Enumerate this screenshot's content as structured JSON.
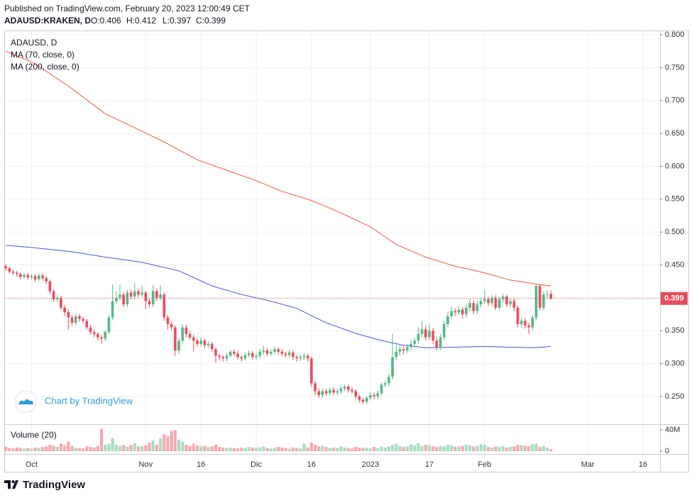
{
  "header": {
    "published": "Published on TradingView.com, February 20, 2023 12:00:49 CET",
    "symbol": "ADAUSD:KRAKEN, D",
    "ohlc": [
      "O:0.406",
      "H:0.412",
      "L:0.397",
      "C:0.399"
    ]
  },
  "chart_data": {
    "type": "candlestick",
    "symbol_label": "ADAUSD, D",
    "up_color": "#53b987",
    "down_color": "#eb4d5c",
    "open": [
      0.448,
      0.445,
      0.44,
      0.438,
      0.436,
      0.432,
      0.435,
      0.431,
      0.433,
      0.428,
      0.434,
      0.43,
      0.425,
      0.41,
      0.398,
      0.4,
      0.385,
      0.378,
      0.37,
      0.362,
      0.372,
      0.368,
      0.365,
      0.355,
      0.348,
      0.345,
      0.34,
      0.338,
      0.348,
      0.37,
      0.395,
      0.4,
      0.405,
      0.39,
      0.408,
      0.402,
      0.41,
      0.405,
      0.408,
      0.395,
      0.39,
      0.41,
      0.4,
      0.405,
      0.37,
      0.36,
      0.355,
      0.32,
      0.335,
      0.355,
      0.345,
      0.34,
      0.335,
      0.33,
      0.335,
      0.328,
      0.33,
      0.322,
      0.312,
      0.31,
      0.308,
      0.312,
      0.318,
      0.315,
      0.31,
      0.308,
      0.313,
      0.316,
      0.31,
      0.312,
      0.318,
      0.32,
      0.315,
      0.318,
      0.322,
      0.318,
      0.315,
      0.313,
      0.317,
      0.31,
      0.308,
      0.31,
      0.312,
      0.308,
      0.27,
      0.258,
      0.252,
      0.258,
      0.255,
      0.26,
      0.256,
      0.258,
      0.262,
      0.265,
      0.26,
      0.258,
      0.25,
      0.245,
      0.242,
      0.248,
      0.252,
      0.25,
      0.255,
      0.268,
      0.27,
      0.28,
      0.31,
      0.318,
      0.322,
      0.32,
      0.325,
      0.33,
      0.335,
      0.345,
      0.352,
      0.34,
      0.35,
      0.335,
      0.325,
      0.34,
      0.36,
      0.372,
      0.38,
      0.378,
      0.382,
      0.375,
      0.385,
      0.392,
      0.38,
      0.39,
      0.395,
      0.398,
      0.392,
      0.4,
      0.385,
      0.398,
      0.402,
      0.39,
      0.395,
      0.385,
      0.36,
      0.365,
      0.358,
      0.355,
      0.37,
      0.418,
      0.385,
      0.405,
      0.406
    ],
    "high": [
      0.452,
      0.448,
      0.443,
      0.441,
      0.439,
      0.438,
      0.438,
      0.436,
      0.436,
      0.437,
      0.437,
      0.433,
      0.428,
      0.413,
      0.404,
      0.403,
      0.389,
      0.382,
      0.374,
      0.376,
      0.376,
      0.371,
      0.368,
      0.359,
      0.352,
      0.348,
      0.344,
      0.351,
      0.374,
      0.42,
      0.41,
      0.42,
      0.409,
      0.412,
      0.413,
      0.422,
      0.414,
      0.418,
      0.411,
      0.399,
      0.42,
      0.414,
      0.419,
      0.408,
      0.374,
      0.364,
      0.358,
      0.34,
      0.36,
      0.359,
      0.349,
      0.344,
      0.339,
      0.34,
      0.338,
      0.334,
      0.333,
      0.325,
      0.315,
      0.313,
      0.316,
      0.321,
      0.322,
      0.319,
      0.313,
      0.317,
      0.32,
      0.319,
      0.316,
      0.322,
      0.327,
      0.324,
      0.322,
      0.326,
      0.325,
      0.322,
      0.318,
      0.321,
      0.32,
      0.313,
      0.314,
      0.316,
      0.315,
      0.311,
      0.274,
      0.262,
      0.262,
      0.262,
      0.264,
      0.264,
      0.262,
      0.266,
      0.268,
      0.268,
      0.264,
      0.261,
      0.253,
      0.248,
      0.251,
      0.256,
      0.256,
      0.259,
      0.271,
      0.274,
      0.284,
      0.345,
      0.33,
      0.328,
      0.327,
      0.33,
      0.336,
      0.34,
      0.356,
      0.365,
      0.358,
      0.36,
      0.354,
      0.34,
      0.345,
      0.365,
      0.378,
      0.386,
      0.384,
      0.388,
      0.386,
      0.39,
      0.398,
      0.396,
      0.395,
      0.4,
      0.412,
      0.402,
      0.404,
      0.404,
      0.402,
      0.406,
      0.405,
      0.399,
      0.399,
      0.388,
      0.369,
      0.369,
      0.362,
      0.374,
      0.42,
      0.421,
      0.41,
      0.411,
      0.412
    ],
    "low": [
      0.441,
      0.437,
      0.434,
      0.432,
      0.428,
      0.429,
      0.427,
      0.428,
      0.424,
      0.425,
      0.426,
      0.421,
      0.406,
      0.394,
      0.394,
      0.381,
      0.372,
      0.352,
      0.357,
      0.358,
      0.364,
      0.361,
      0.351,
      0.344,
      0.34,
      0.335,
      0.33,
      0.334,
      0.345,
      0.366,
      0.39,
      0.396,
      0.386,
      0.386,
      0.398,
      0.398,
      0.4,
      0.401,
      0.383,
      0.385,
      0.386,
      0.395,
      0.396,
      0.365,
      0.352,
      0.35,
      0.312,
      0.314,
      0.33,
      0.34,
      0.336,
      0.318,
      0.325,
      0.326,
      0.323,
      0.324,
      0.318,
      0.301,
      0.305,
      0.303,
      0.304,
      0.309,
      0.311,
      0.306,
      0.303,
      0.305,
      0.309,
      0.306,
      0.306,
      0.308,
      0.314,
      0.311,
      0.311,
      0.314,
      0.314,
      0.311,
      0.309,
      0.309,
      0.306,
      0.303,
      0.304,
      0.306,
      0.303,
      0.265,
      0.252,
      0.248,
      0.248,
      0.251,
      0.251,
      0.252,
      0.252,
      0.254,
      0.258,
      0.256,
      0.254,
      0.246,
      0.241,
      0.238,
      0.238,
      0.244,
      0.246,
      0.246,
      0.251,
      0.264,
      0.266,
      0.276,
      0.305,
      0.312,
      0.314,
      0.316,
      0.32,
      0.325,
      0.33,
      0.34,
      0.335,
      0.335,
      0.33,
      0.32,
      0.32,
      0.336,
      0.355,
      0.368,
      0.372,
      0.374,
      0.368,
      0.37,
      0.38,
      0.375,
      0.376,
      0.385,
      0.39,
      0.387,
      0.388,
      0.381,
      0.381,
      0.393,
      0.386,
      0.386,
      0.38,
      0.355,
      0.355,
      0.353,
      0.345,
      0.35,
      0.366,
      0.381,
      0.381,
      0.399,
      0.397
    ],
    "close": [
      0.445,
      0.44,
      0.438,
      0.436,
      0.432,
      0.435,
      0.431,
      0.433,
      0.428,
      0.434,
      0.43,
      0.425,
      0.41,
      0.398,
      0.4,
      0.385,
      0.378,
      0.37,
      0.362,
      0.372,
      0.368,
      0.365,
      0.355,
      0.348,
      0.345,
      0.34,
      0.338,
      0.348,
      0.37,
      0.395,
      0.4,
      0.405,
      0.39,
      0.408,
      0.402,
      0.41,
      0.405,
      0.408,
      0.395,
      0.39,
      0.41,
      0.4,
      0.405,
      0.37,
      0.36,
      0.355,
      0.32,
      0.335,
      0.355,
      0.345,
      0.34,
      0.335,
      0.33,
      0.335,
      0.328,
      0.33,
      0.322,
      0.312,
      0.31,
      0.308,
      0.312,
      0.318,
      0.315,
      0.31,
      0.308,
      0.313,
      0.316,
      0.31,
      0.312,
      0.318,
      0.32,
      0.315,
      0.318,
      0.322,
      0.318,
      0.315,
      0.313,
      0.317,
      0.31,
      0.308,
      0.31,
      0.312,
      0.308,
      0.27,
      0.258,
      0.252,
      0.258,
      0.255,
      0.26,
      0.256,
      0.258,
      0.262,
      0.265,
      0.26,
      0.258,
      0.25,
      0.245,
      0.242,
      0.248,
      0.252,
      0.25,
      0.255,
      0.268,
      0.27,
      0.28,
      0.31,
      0.318,
      0.322,
      0.32,
      0.325,
      0.33,
      0.335,
      0.345,
      0.352,
      0.34,
      0.35,
      0.335,
      0.325,
      0.34,
      0.36,
      0.372,
      0.38,
      0.378,
      0.382,
      0.375,
      0.385,
      0.392,
      0.38,
      0.39,
      0.395,
      0.398,
      0.392,
      0.4,
      0.385,
      0.398,
      0.402,
      0.39,
      0.395,
      0.385,
      0.36,
      0.365,
      0.358,
      0.355,
      0.37,
      0.418,
      0.385,
      0.405,
      0.406,
      0.399
    ],
    "series": [
      {
        "name": "MA (70, close, 0)",
        "color": "#4a55d6",
        "x": [
          0,
          8,
          18,
          27,
          37,
          47,
          56,
          64,
          72,
          79,
          87,
          95,
          102,
          108,
          114,
          122,
          130,
          137,
          143,
          148
        ],
        "values": [
          0.48,
          0.476,
          0.47,
          0.462,
          0.454,
          0.441,
          0.418,
          0.405,
          0.395,
          0.384,
          0.362,
          0.346,
          0.335,
          0.328,
          0.324,
          0.325,
          0.326,
          0.325,
          0.324,
          0.326
        ]
      },
      {
        "name": "MA (200, close, 0)",
        "color": "#f0554a",
        "x": [
          0,
          8,
          18,
          27,
          33,
          43,
          52,
          60,
          68,
          75,
          83,
          91,
          99,
          106,
          114,
          122,
          130,
          137,
          145,
          148
        ],
        "values": [
          0.775,
          0.756,
          0.718,
          0.68,
          0.664,
          0.637,
          0.61,
          0.594,
          0.578,
          0.562,
          0.548,
          0.529,
          0.508,
          0.481,
          0.462,
          0.448,
          0.438,
          0.427,
          0.42,
          0.418
        ]
      }
    ],
    "last_price": 0.399,
    "last_price_color": "#e64c5a",
    "xlim": [
      -0.4,
      177.6
    ],
    "xticks": [
      {
        "value": 7,
        "label": "Oct"
      },
      {
        "value": 38,
        "label": "Nov"
      },
      {
        "value": 53,
        "label": "16"
      },
      {
        "value": 68,
        "label": "Dic"
      },
      {
        "value": 83,
        "label": "16"
      },
      {
        "value": 99,
        "label": "2023"
      },
      {
        "value": 115,
        "label": "17"
      },
      {
        "value": 130,
        "label": "Feb"
      },
      {
        "value": 158,
        "label": "Mar"
      },
      {
        "value": 173,
        "label": "16"
      }
    ],
    "ylim": [
      0.2078,
      0.8065
    ],
    "yticks": [
      {
        "value": 0.25,
        "label": "0.250"
      },
      {
        "value": 0.3,
        "label": "0.300"
      },
      {
        "value": 0.35,
        "label": "0.350"
      },
      {
        "value": 0.4,
        "label": "0.400"
      },
      {
        "value": 0.45,
        "label": "0.450"
      },
      {
        "value": 0.5,
        "label": "0.500"
      },
      {
        "value": 0.55,
        "label": "0.550"
      },
      {
        "value": 0.6,
        "label": "0.600"
      },
      {
        "value": 0.65,
        "label": "0.650"
      },
      {
        "value": 0.7,
        "label": "0.700"
      },
      {
        "value": 0.75,
        "label": "0.750"
      },
      {
        "value": 0.8,
        "label": "0.800"
      }
    ],
    "grid": true,
    "volume": {
      "title": "Volume (20)",
      "up_color": "#a9dcc3",
      "down_color": "#f5a9b0",
      "ylim": [
        -5.3,
        50.7
      ],
      "yticks": [
        {
          "value": 40,
          "label": "40M"
        },
        0
      ],
      "values": [
        8,
        6,
        5,
        7,
        6,
        5,
        6,
        5,
        7,
        6,
        8,
        9,
        12,
        10,
        8,
        14,
        11,
        18,
        10,
        7,
        6,
        5,
        9,
        8,
        7,
        10,
        42,
        12,
        14,
        25,
        12,
        10,
        11,
        8,
        12,
        15,
        9,
        10,
        11,
        16,
        20,
        12,
        24,
        32,
        28,
        38,
        40,
        22,
        18,
        12,
        10,
        14,
        11,
        9,
        10,
        8,
        9,
        12,
        8,
        7,
        6,
        7,
        6,
        5,
        7,
        6,
        8,
        7,
        6,
        7,
        9,
        6,
        5,
        6,
        8,
        7,
        6,
        5,
        7,
        6,
        5,
        14,
        7,
        16,
        12,
        9,
        10,
        8,
        6,
        7,
        6,
        9,
        7,
        6,
        5,
        8,
        7,
        6,
        7,
        5,
        8,
        6,
        9,
        7,
        9,
        12,
        14,
        10,
        8,
        9,
        13,
        11,
        15,
        10,
        12,
        11,
        9,
        8,
        10,
        9,
        12,
        11,
        8,
        9,
        10,
        12,
        11,
        9,
        10,
        13,
        12,
        8,
        7,
        9,
        8,
        10,
        7,
        8,
        9,
        12,
        11,
        10,
        9,
        13,
        14,
        8,
        10,
        7,
        4
      ]
    },
    "watermark": "Chart by TradingView"
  },
  "footer": {
    "brand": "TradingView"
  }
}
